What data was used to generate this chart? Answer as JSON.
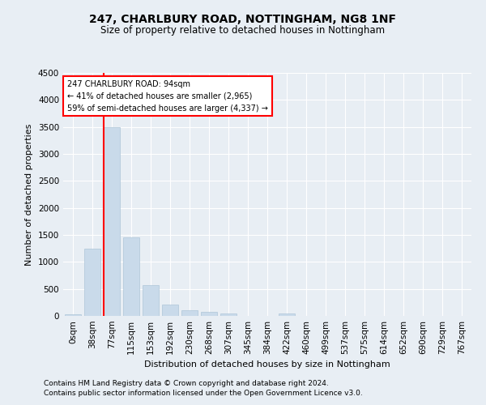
{
  "title1": "247, CHARLBURY ROAD, NOTTINGHAM, NG8 1NF",
  "title2": "Size of property relative to detached houses in Nottingham",
  "xlabel": "Distribution of detached houses by size in Nottingham",
  "ylabel": "Number of detached properties",
  "bar_labels": [
    "0sqm",
    "38sqm",
    "77sqm",
    "115sqm",
    "153sqm",
    "192sqm",
    "230sqm",
    "268sqm",
    "307sqm",
    "345sqm",
    "384sqm",
    "422sqm",
    "460sqm",
    "499sqm",
    "537sqm",
    "575sqm",
    "614sqm",
    "652sqm",
    "690sqm",
    "729sqm",
    "767sqm"
  ],
  "bar_values": [
    25,
    1250,
    3500,
    1450,
    570,
    215,
    110,
    75,
    45,
    0,
    0,
    40,
    0,
    0,
    0,
    0,
    0,
    0,
    0,
    0,
    0
  ],
  "bar_color": "#c9daea",
  "bar_edge_color": "#aec6d8",
  "red_line_bin": 2,
  "annotation_line1": "247 CHARLBURY ROAD: 94sqm",
  "annotation_line2": "← 41% of detached houses are smaller (2,965)",
  "annotation_line3": "59% of semi-detached houses are larger (4,337) →",
  "ylim": [
    0,
    4500
  ],
  "yticks": [
    0,
    500,
    1000,
    1500,
    2000,
    2500,
    3000,
    3500,
    4000,
    4500
  ],
  "footnote1": "Contains HM Land Registry data © Crown copyright and database right 2024.",
  "footnote2": "Contains public sector information licensed under the Open Government Licence v3.0.",
  "fig_bg_color": "#e8eef4",
  "plot_bg_color": "#e8eef4",
  "grid_color": "#ffffff",
  "title1_fontsize": 10,
  "title2_fontsize": 8.5,
  "axis_label_fontsize": 8,
  "tick_fontsize": 7.5,
  "footnote_fontsize": 6.5
}
